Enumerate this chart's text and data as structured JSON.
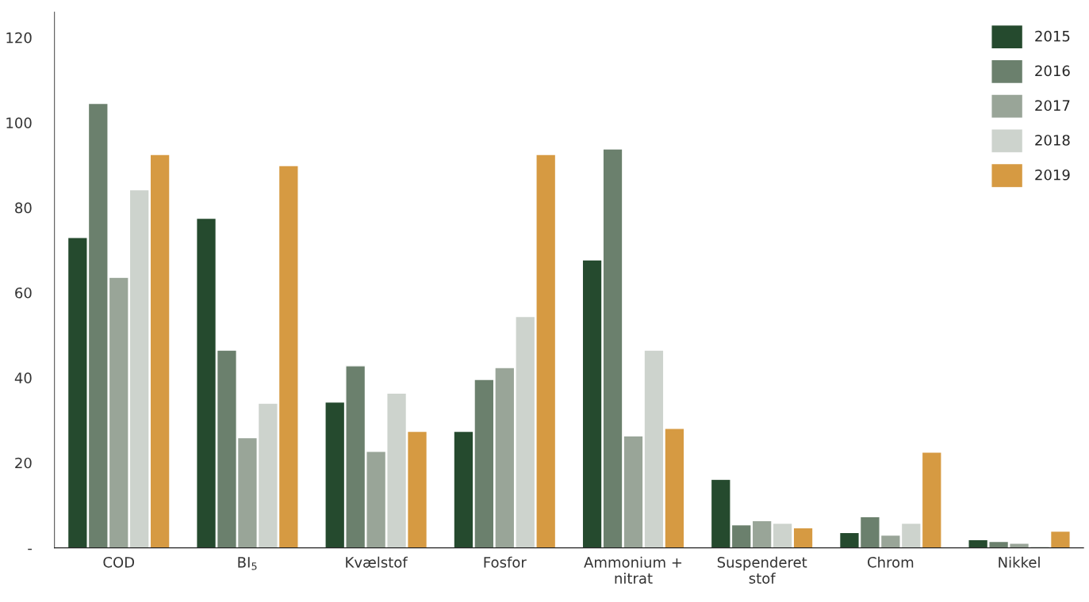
{
  "chart_data": {
    "type": "bar",
    "categories": [
      "COD",
      "BI$_{5}$",
      "Kvælstof",
      "Fosfor",
      "Ammonium +\nnitrat",
      "Suspenderet\nstof",
      "Chrom",
      "Nikkel"
    ],
    "series": [
      {
        "name": "2015",
        "color": "#254a2e",
        "values": [
          73,
          77.5,
          34.3,
          27.4,
          67.7,
          16.1,
          3.6,
          1.9
        ]
      },
      {
        "name": "2016",
        "color": "#6b806d",
        "values": [
          104.5,
          46.5,
          42.8,
          39.6,
          93.8,
          5.4,
          7.3,
          1.5
        ]
      },
      {
        "name": "2017",
        "color": "#99a598",
        "values": [
          63.6,
          25.9,
          22.7,
          42.4,
          26.3,
          6.4,
          3,
          1.1
        ]
      },
      {
        "name": "2018",
        "color": "#cdd3cd",
        "values": [
          84.2,
          34,
          36.4,
          54.4,
          46.5,
          5.8,
          5.8,
          0.4
        ]
      },
      {
        "name": "2019",
        "color": "#d69a42",
        "values": [
          92.5,
          89.9,
          27.4,
          92.5,
          28.1,
          4.7,
          22.5,
          3.9
        ]
      }
    ],
    "ylim": [
      0,
      126
    ],
    "yticks": [
      {
        "value": 0,
        "label": "-"
      },
      20,
      40,
      60,
      80,
      100,
      120
    ],
    "grid": false,
    "legend": "top right"
  }
}
